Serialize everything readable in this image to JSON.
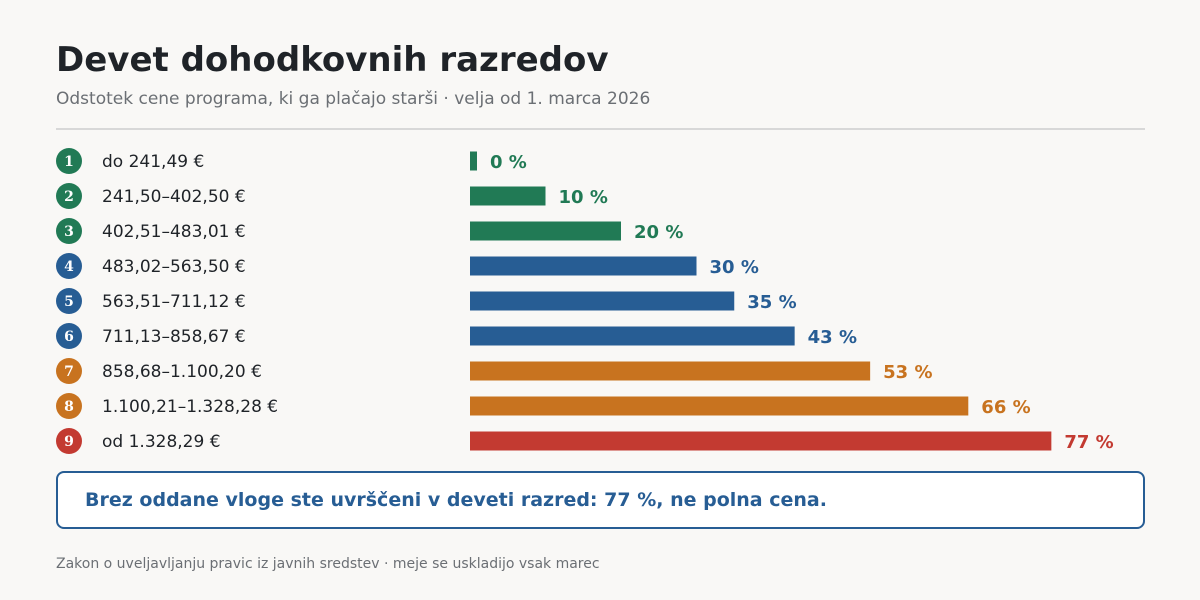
{
  "header": {
    "title": "Devet dohodkovnih razredov",
    "subtitle": "Odstotek cene programa, ki ga plačajo starši · velja od 1. marca 2026"
  },
  "colors": {
    "green": "#217a55",
    "blue": "#275d94",
    "orange": "#c8731f",
    "red": "#c33a31"
  },
  "chart_data": {
    "type": "bar",
    "orientation": "horizontal",
    "categories": [
      "do 241,49 €",
      "241,50–402,50 €",
      "402,51–483,01 €",
      "483,02–563,50 €",
      "563,51–711,12 €",
      "711,13–858,67 €",
      "858,68–1.100,20 €",
      "1.100,21–1.328,28 €",
      "od 1.328,29 €"
    ],
    "badges": [
      "1",
      "2",
      "3",
      "4",
      "5",
      "6",
      "7",
      "8",
      "9"
    ],
    "values": [
      0,
      10,
      20,
      30,
      35,
      43,
      53,
      66,
      77
    ],
    "value_labels": [
      "0 %",
      "10 %",
      "20 %",
      "30 %",
      "35 %",
      "43 %",
      "53 %",
      "66 %",
      "77 %"
    ],
    "bar_colors": [
      "#217a55",
      "#217a55",
      "#217a55",
      "#275d94",
      "#275d94",
      "#275d94",
      "#c8731f",
      "#c8731f",
      "#c33a31"
    ],
    "xlim": [
      0,
      100
    ],
    "grid": false,
    "legend": "none"
  },
  "callout": {
    "text": "Brez oddane vloge ste uvrščeni v deveti razred: 77 %, ne polna cena."
  },
  "footer": {
    "text": "Zakon o uveljavljanju pravic iz javnih sredstev · meje se uskladijo vsak marec"
  }
}
